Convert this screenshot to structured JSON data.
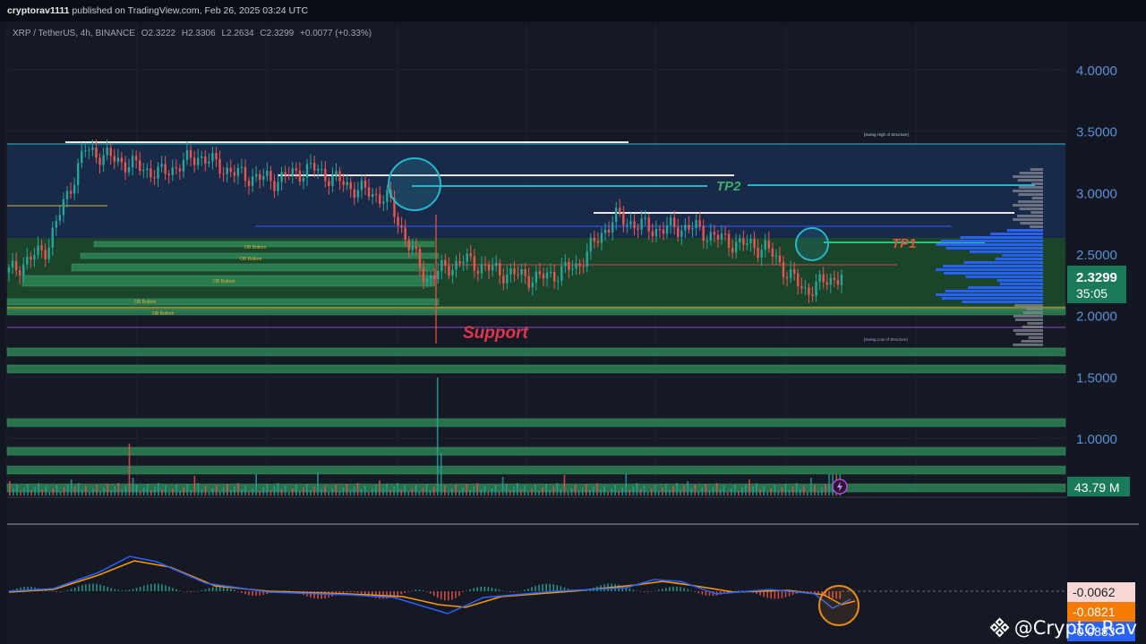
{
  "header": {
    "author": "cryptorav1111",
    "published_on": "published on TradingView.com, Feb 26, 2025 03:24 UTC"
  },
  "symbol_info": {
    "pair": "XRP / TetherUS, 4h, BINANCE",
    "open_label": "O",
    "open": "2.3222",
    "high_label": "H",
    "high": "2.3306",
    "low_label": "L",
    "low": "2.2634",
    "close_label": "C",
    "close": "2.3299",
    "change": "+0.0077 (+0.33%)"
  },
  "price_axis": {
    "ticks": [
      "4.0000",
      "3.5000",
      "3.0000",
      "2.5000",
      "2.0000",
      "1.5000",
      "1.0000"
    ],
    "current_price": "2.3299",
    "countdown": "35:05",
    "volume": "43.79 M"
  },
  "oscillator_axis": {
    "values": [
      "-0.0062",
      "-0.0821",
      "-0.0883"
    ]
  },
  "annotations": {
    "tp2": "TP2",
    "tp1": "TP1",
    "support": "Support",
    "ob_bottom": "OB Bottom",
    "swing_high": "[Swing High of Structure]",
    "swing_low": "[Swing Low of Structure]"
  },
  "watermark": "@Crypto Rav",
  "colors": {
    "background": "#131722",
    "green_zone": "#1e5a34",
    "green_line": "#2f8f5b",
    "blue_zone": "#1a2e4f",
    "cyan_line": "#26b5c9",
    "volume_profile_blue": "#2962ff",
    "volume_profile_gray": "#8a8f9a",
    "candle_up": "#26a69a",
    "candle_down": "#ef5350",
    "price_badge": "#1b7a5a",
    "support_text": "#e0354e",
    "tp_text_green": "#3fae6a",
    "tp1_text": "#e0533e",
    "circle_orange": "#e88a1a",
    "macd_line": "#2962ff",
    "signal_line": "#ff9800"
  },
  "chart_data": {
    "type": "line",
    "title": "XRP / TetherUS, 4h, BINANCE",
    "xlabel": "",
    "ylabel": "",
    "ylim": [
      0.85,
      4.25
    ],
    "x": [
      0,
      10,
      20,
      30,
      40,
      50,
      60,
      70,
      80,
      90,
      100,
      110,
      120,
      130,
      140,
      150,
      160,
      170,
      180,
      190,
      200,
      210,
      220
    ],
    "series": [
      {
        "values": [
          2.35,
          2.55,
          3.35,
          3.25,
          3.15,
          3.3,
          3.15,
          3.1,
          3.2,
          3.05,
          2.95,
          2.3,
          2.45,
          2.35,
          2.3,
          2.4,
          2.8,
          2.7,
          2.72,
          2.6,
          2.55,
          2.2,
          2.33
        ]
      }
    ],
    "levels": {
      "tp2": 3.07,
      "tp1": 2.58,
      "support": 1.97,
      "swing_high": 3.4,
      "swing_low": 1.9
    }
  }
}
